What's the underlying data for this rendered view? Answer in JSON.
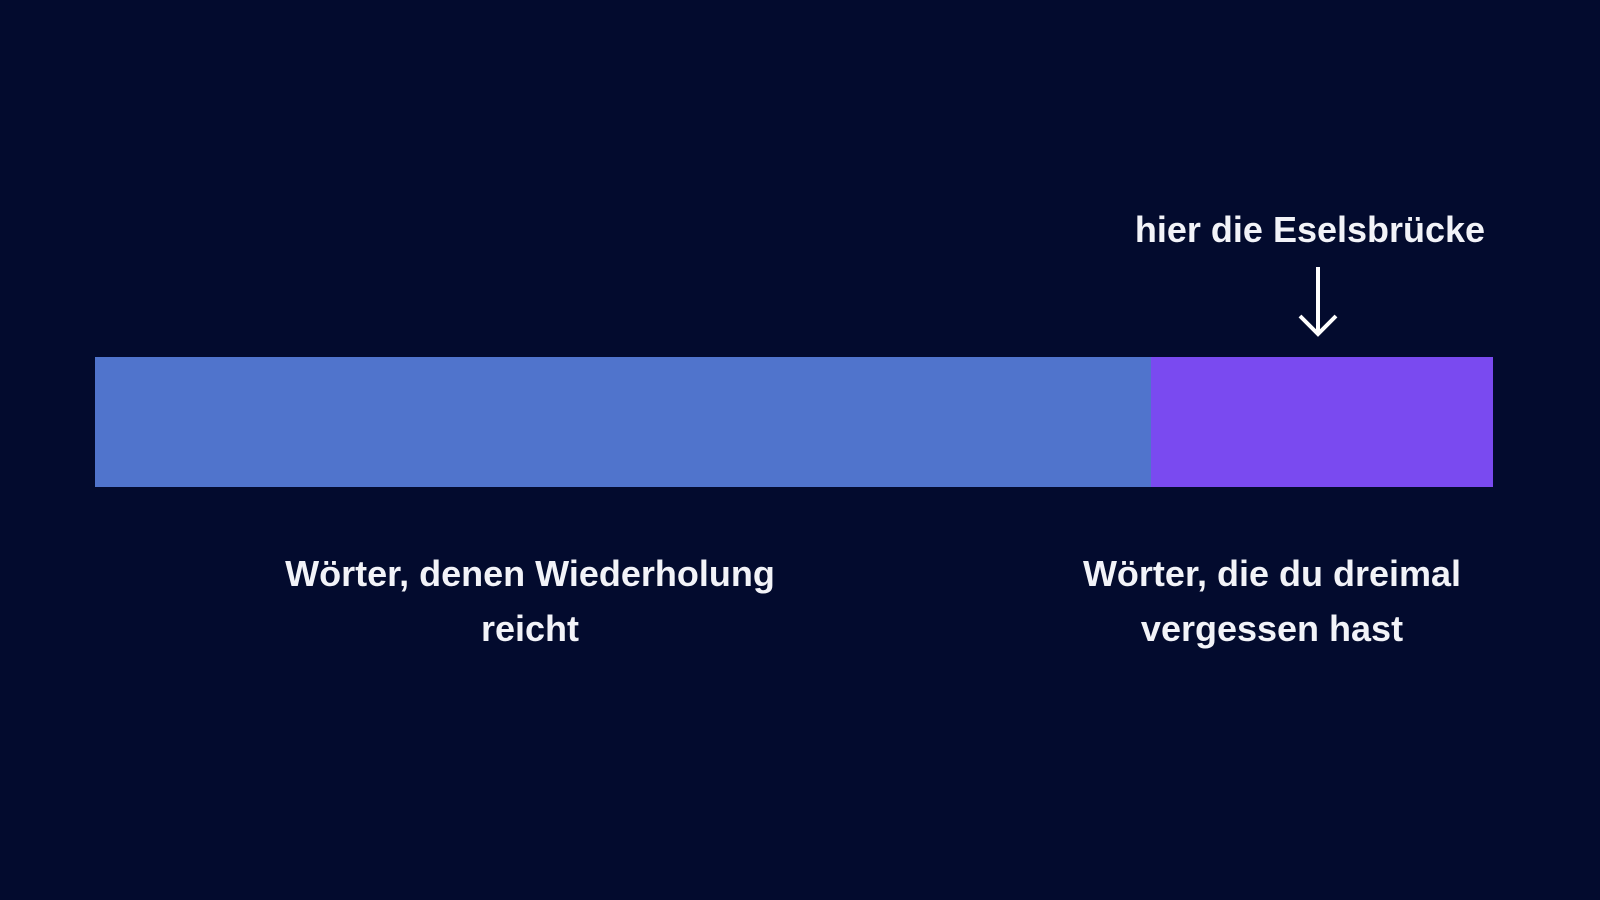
{
  "annotation": "hier die Eselsbrücke",
  "segments": [
    {
      "label": "Wörter, denen Wiederholung reicht"
    },
    {
      "label": "Wörter, die du dreimal vergessen hast"
    }
  ]
}
